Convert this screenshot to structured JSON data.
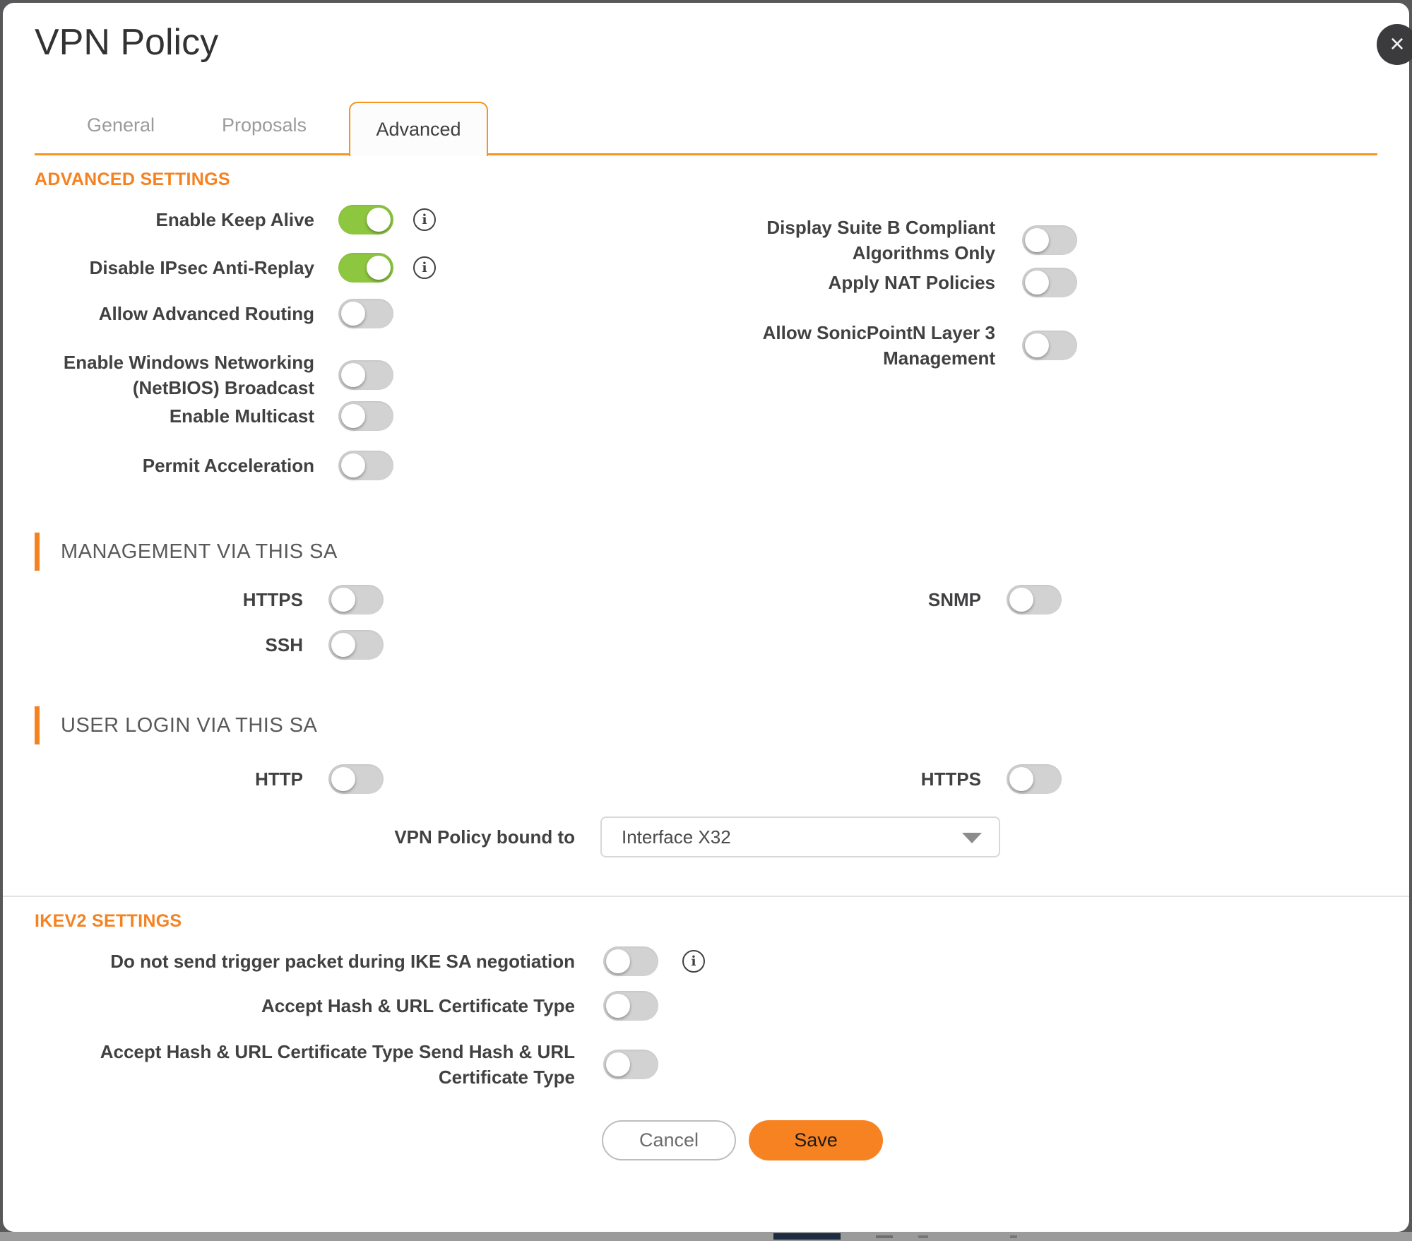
{
  "dialog": {
    "title": "VPN Policy"
  },
  "icons": {
    "close": "×",
    "info": "i"
  },
  "colors": {
    "accent_orange": "#F58220",
    "tab_border_orange": "#F7941E",
    "save_button_orange": "#F78221",
    "toggle_on_green": "#8DC63F",
    "toggle_off_gray": "#D2D2D2"
  },
  "tabs": {
    "general": "General",
    "proposals": "Proposals",
    "advanced": "Advanced"
  },
  "advanced_settings": {
    "heading": "ADVANCED SETTINGS",
    "left": [
      {
        "label": "Enable Keep Alive",
        "state": "on",
        "info": true
      },
      {
        "label": "Disable IPsec Anti-Replay",
        "state": "on",
        "info": true
      },
      {
        "label": "Allow Advanced Routing",
        "state": "off"
      },
      {
        "label": "Enable Windows Networking (NetBIOS) Broadcast",
        "state": "off"
      },
      {
        "label": "Enable Multicast",
        "state": "off"
      },
      {
        "label": "Permit Acceleration",
        "state": "off"
      }
    ],
    "right": [
      {
        "label": "Display Suite B Compliant Algorithms Only",
        "state": "off"
      },
      {
        "label": "Apply NAT Policies",
        "state": "off"
      },
      {
        "label": "Allow SonicPointN Layer 3 Management",
        "state": "off"
      }
    ]
  },
  "management": {
    "heading": "MANAGEMENT VIA THIS SA",
    "left": [
      {
        "label": "HTTPS",
        "state": "off"
      },
      {
        "label": "SSH",
        "state": "off"
      }
    ],
    "right": [
      {
        "label": "SNMP",
        "state": "off"
      }
    ]
  },
  "user_login": {
    "heading": "USER LOGIN VIA THIS SA",
    "left": [
      {
        "label": "HTTP",
        "state": "off"
      }
    ],
    "right": [
      {
        "label": "HTTPS",
        "state": "off"
      }
    ],
    "bound": {
      "label": "VPN Policy bound to",
      "value": "Interface X32"
    }
  },
  "ikev2": {
    "heading": "IKEV2 SETTINGS",
    "rows": [
      {
        "label": "Do not send trigger packet during IKE SA negotiation",
        "state": "off",
        "info": true
      },
      {
        "label": "Accept Hash & URL Certificate Type",
        "state": "off"
      },
      {
        "label": "Accept Hash & URL Certificate Type Send Hash & URL Certificate Type",
        "state": "off"
      }
    ]
  },
  "footer": {
    "cancel": "Cancel",
    "save": "Save"
  }
}
